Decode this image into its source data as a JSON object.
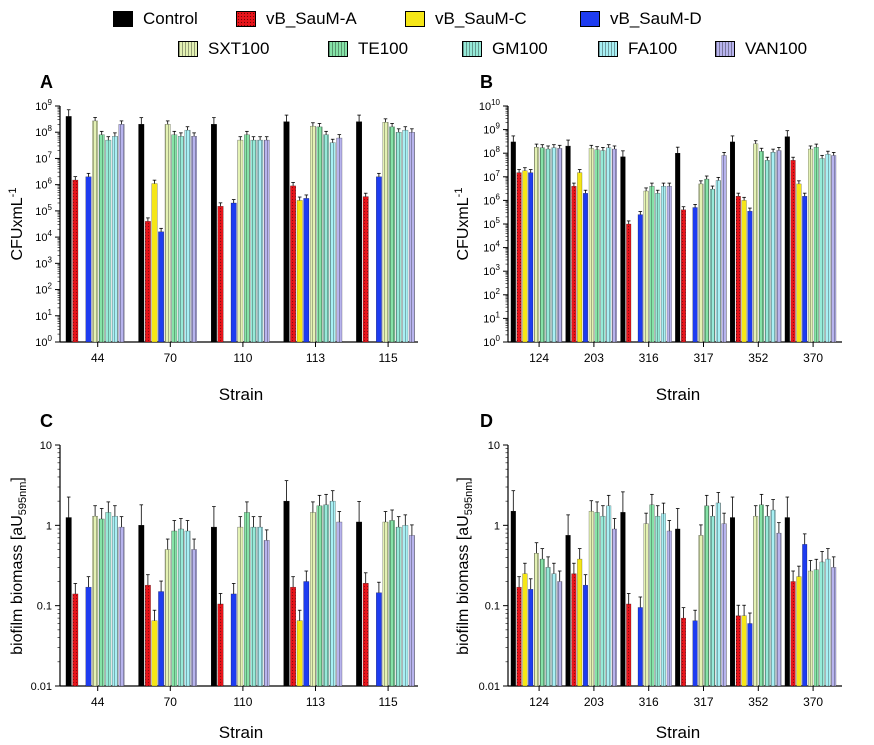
{
  "legend": [
    {
      "name": "Control",
      "color": "#000000",
      "pattern": "none"
    },
    {
      "name": "vB_SauM-A",
      "color": "#e8141b",
      "pattern": "dots"
    },
    {
      "name": "vB_SauM-C",
      "color": "#f5e617",
      "pattern": "none"
    },
    {
      "name": "vB_SauM-D",
      "color": "#1e3cf0",
      "pattern": "none"
    },
    {
      "name": "SXT100",
      "color": "#e4f2b4",
      "pattern": "vlines"
    },
    {
      "name": "TE100",
      "color": "#86e3a8",
      "pattern": "vlines"
    },
    {
      "name": "GM100",
      "color": "#96ead8",
      "pattern": "vlines"
    },
    {
      "name": "FA100",
      "color": "#a8f0f4",
      "pattern": "vlines"
    },
    {
      "name": "VAN100",
      "color": "#b8b4ee",
      "pattern": "vlines"
    }
  ],
  "chart_data": [
    {
      "panel": "A",
      "type": "bar",
      "scale": "log",
      "ylabel_main": "CFUxmL",
      "ylabel_sup": "-1",
      "xlabel": "Strain",
      "ylim_exp": [
        0,
        9
      ],
      "ytick_labels": [
        "10",
        "10",
        "10",
        "10",
        "10",
        "10",
        "10",
        "10",
        "10",
        "10"
      ],
      "ytick_sups": [
        "0",
        "1",
        "2",
        "3",
        "4",
        "5",
        "6",
        "7",
        "8",
        "9"
      ],
      "categories": [
        "44",
        "70",
        "110",
        "113",
        "115"
      ],
      "series": [
        {
          "name": "Control",
          "values": [
            400000000.0,
            200000000.0,
            200000000.0,
            250000000.0,
            250000000.0
          ]
        },
        {
          "name": "vB_SauM-A",
          "values": [
            1500000.0,
            40000.0,
            150000.0,
            900000.0,
            350000.0
          ]
        },
        {
          "name": "vB_SauM-C",
          "values": [
            null,
            1100000.0,
            null,
            250000.0,
            null
          ]
        },
        {
          "name": "vB_SauM-D",
          "values": [
            2000000.0,
            16000.0,
            200000.0,
            300000.0,
            2000000.0
          ]
        },
        {
          "name": "SXT100",
          "values": [
            270000000.0,
            200000000.0,
            50000000.0,
            170000000.0,
            240000000.0
          ]
        },
        {
          "name": "TE100",
          "values": [
            80000000.0,
            80000000.0,
            80000000.0,
            160000000.0,
            160000000.0
          ]
        },
        {
          "name": "GM100",
          "values": [
            50000000.0,
            70000000.0,
            50000000.0,
            80000000.0,
            100000000.0
          ]
        },
        {
          "name": "FA100",
          "values": [
            70000000.0,
            120000000.0,
            50000000.0,
            40000000.0,
            120000000.0
          ]
        },
        {
          "name": "VAN100",
          "values": [
            200000000.0,
            70000000.0,
            50000000.0,
            60000000.0,
            100000000.0
          ]
        }
      ]
    },
    {
      "panel": "B",
      "type": "bar",
      "scale": "log",
      "ylabel_main": "CFUxmL",
      "ylabel_sup": "-1",
      "xlabel": "Strain",
      "ylim_exp": [
        0,
        10
      ],
      "ytick_labels": [
        "10",
        "10",
        "10",
        "10",
        "10",
        "10",
        "10",
        "10",
        "10",
        "10",
        "10"
      ],
      "ytick_sups": [
        "0",
        "1",
        "2",
        "3",
        "4",
        "5",
        "6",
        "7",
        "8",
        "9",
        "10"
      ],
      "categories": [
        "124",
        "203",
        "316",
        "317",
        "352",
        "370"
      ],
      "series": [
        {
          "name": "Control",
          "values": [
            300000000.0,
            200000000.0,
            70000000.0,
            100000000.0,
            300000000.0,
            500000000.0
          ]
        },
        {
          "name": "vB_SauM-A",
          "values": [
            15000000.0,
            4000000.0,
            100000.0,
            400000.0,
            1500000.0,
            50000000.0
          ]
        },
        {
          "name": "vB_SauM-C",
          "values": [
            18000000.0,
            15000000.0,
            null,
            null,
            1000000.0,
            5000000.0
          ]
        },
        {
          "name": "vB_SauM-D",
          "values": [
            15000000.0,
            2000000.0,
            250000.0,
            500000.0,
            350000.0,
            1500000.0
          ]
        },
        {
          "name": "SXT100",
          "values": [
            180000000.0,
            160000000.0,
            2500000.0,
            5000000.0,
            250000000.0,
            150000000.0
          ]
        },
        {
          "name": "TE100",
          "values": [
            170000000.0,
            140000000.0,
            4000000.0,
            8000000.0,
            120000000.0,
            180000000.0
          ]
        },
        {
          "name": "GM100",
          "values": [
            150000000.0,
            130000000.0,
            2000000.0,
            3000000.0,
            50000000.0,
            60000000.0
          ]
        },
        {
          "name": "FA100",
          "values": [
            170000000.0,
            170000000.0,
            4000000.0,
            7000000.0,
            110000000.0,
            90000000.0
          ]
        },
        {
          "name": "VAN100",
          "values": [
            160000000.0,
            150000000.0,
            4000000.0,
            80000000.0,
            130000000.0,
            80000000.0
          ]
        }
      ]
    },
    {
      "panel": "C",
      "type": "bar",
      "scale": "log",
      "ylabel_main": "biofilm biomass [aU",
      "ylabel_sub": "595nm",
      "ylabel_end": "]",
      "xlabel": "Strain",
      "ylim_exp": [
        -2,
        1
      ],
      "ytick_labels": [
        "0.01",
        "0.1",
        "1",
        "10"
      ],
      "ytick_sups": [
        "",
        "",
        "",
        ""
      ],
      "categories": [
        "44",
        "70",
        "110",
        "113",
        "115"
      ],
      "series": [
        {
          "name": "Control",
          "values": [
            1.25,
            1.0,
            0.95,
            2.0,
            1.1
          ]
        },
        {
          "name": "vB_SauM-A",
          "values": [
            0.14,
            0.18,
            0.105,
            0.17,
            0.19
          ]
        },
        {
          "name": "vB_SauM-C",
          "values": [
            null,
            0.065,
            null,
            0.065,
            null
          ]
        },
        {
          "name": "vB_SauM-D",
          "values": [
            0.17,
            0.15,
            0.14,
            0.2,
            0.145
          ]
        },
        {
          "name": "SXT100",
          "values": [
            1.3,
            0.5,
            0.95,
            1.45,
            1.1
          ]
        },
        {
          "name": "TE100",
          "values": [
            1.2,
            0.85,
            1.45,
            1.75,
            1.15
          ]
        },
        {
          "name": "GM100",
          "values": [
            1.45,
            0.9,
            0.95,
            1.8,
            0.95
          ]
        },
        {
          "name": "FA100",
          "values": [
            1.3,
            0.85,
            0.95,
            2.0,
            1.0
          ]
        },
        {
          "name": "VAN100",
          "values": [
            0.95,
            0.5,
            0.65,
            1.1,
            0.75
          ]
        }
      ]
    },
    {
      "panel": "D",
      "type": "bar",
      "scale": "log",
      "ylabel_main": "biofilm biomass [aU",
      "ylabel_sub": "595nm",
      "ylabel_end": "]",
      "xlabel": "Strain",
      "ylim_exp": [
        -2,
        1
      ],
      "ytick_labels": [
        "0.01",
        "0.1",
        "1",
        "10"
      ],
      "ytick_sups": [
        "",
        "",
        "",
        ""
      ],
      "categories": [
        "124",
        "203",
        "316",
        "317",
        "352",
        "370"
      ],
      "series": [
        {
          "name": "Control",
          "values": [
            1.5,
            0.75,
            1.45,
            0.9,
            1.25,
            1.25
          ]
        },
        {
          "name": "vB_SauM-A",
          "values": [
            0.17,
            0.25,
            0.105,
            0.07,
            0.075,
            0.2
          ]
        },
        {
          "name": "vB_SauM-C",
          "values": [
            0.25,
            0.38,
            null,
            null,
            0.075,
            0.23
          ]
        },
        {
          "name": "vB_SauM-D",
          "values": [
            0.16,
            0.18,
            0.095,
            0.065,
            0.06,
            0.58
          ]
        },
        {
          "name": "SXT100",
          "values": [
            0.45,
            1.5,
            1.05,
            0.75,
            1.3,
            0.27
          ]
        },
        {
          "name": "TE100",
          "values": [
            0.38,
            1.45,
            1.8,
            1.75,
            1.8,
            0.28
          ]
        },
        {
          "name": "GM100",
          "values": [
            0.3,
            1.3,
            1.3,
            1.3,
            1.3,
            0.35
          ]
        },
        {
          "name": "FA100",
          "values": [
            0.25,
            1.75,
            1.4,
            1.9,
            1.55,
            0.38
          ]
        },
        {
          "name": "VAN100",
          "values": [
            0.2,
            0.9,
            0.85,
            1.05,
            0.8,
            0.3
          ]
        }
      ]
    }
  ]
}
